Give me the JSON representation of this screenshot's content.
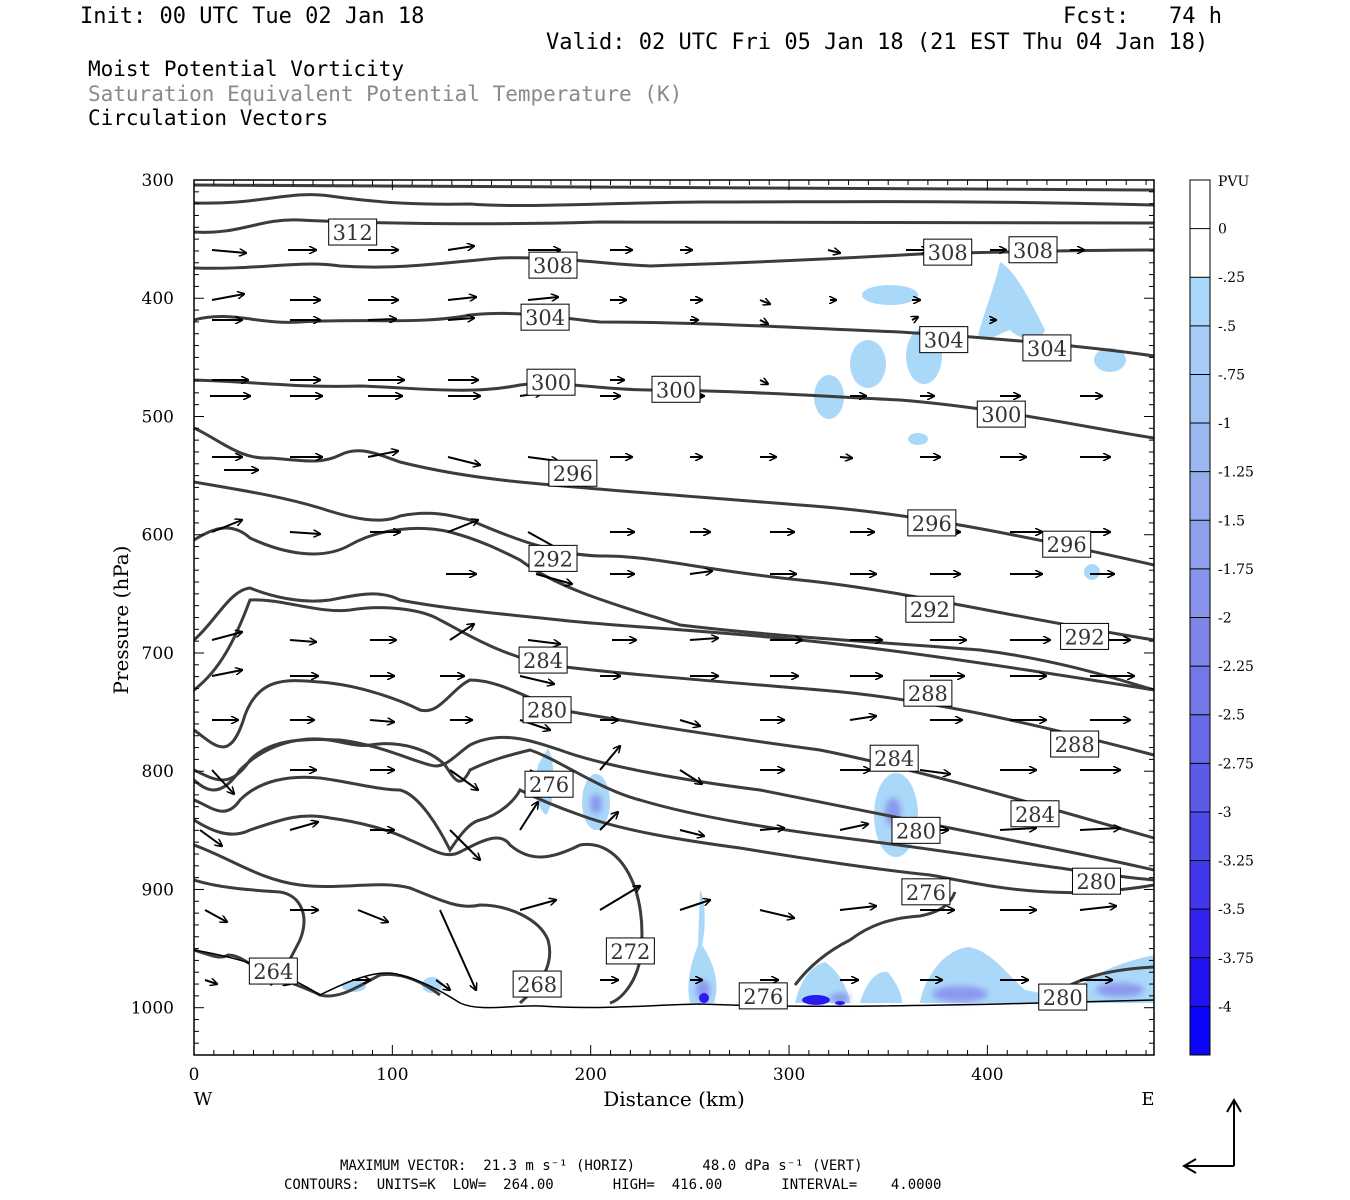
{
  "header": {
    "init": "Init: 00 UTC Tue 02 Jan 18",
    "fcst": "Fcst:   74 h",
    "valid": "Valid: 02 UTC Fri 05 Jan 18 (21 EST Thu 04 Jan 18)",
    "field1": "Moist Potential Vorticity",
    "field2": "Saturation Equivalent Potential Temperature (K)",
    "field3": "Circulation Vectors"
  },
  "footer": {
    "line1": "MAXIMUM VECTOR:  21.3 m s⁻¹ (HORIZ)        48.0 dPa s⁻¹ (VERT)",
    "line2": "CONTOURS:  UNITS=K  LOW=  264.00       HIGH=  416.00       INTERVAL=    4.0000"
  },
  "colors": {
    "contour": "#3c3c3c",
    "frame": "#000000",
    "label_grey": "#8a8a8a"
  },
  "chart_data": {
    "type": "contour",
    "xlabel": "Distance (km)",
    "ylabel": "Pressure (hPa)",
    "xlim": [
      0,
      484
    ],
    "ylim": [
      1040,
      300
    ],
    "xticks": [
      0,
      100,
      200,
      300,
      400
    ],
    "yticks": [
      300,
      400,
      500,
      600,
      700,
      800,
      900,
      1000
    ],
    "west_label": "W",
    "east_label": "E",
    "contour_units": "K",
    "contour_low": 264,
    "contour_high": 416,
    "contour_interval": 4,
    "contour_labels": [
      {
        "text": "312",
        "x": 80,
        "p": 344
      },
      {
        "text": "308",
        "x": 181,
        "p": 372
      },
      {
        "text": "308",
        "x": 380,
        "p": 361
      },
      {
        "text": "308",
        "x": 423,
        "p": 359
      },
      {
        "text": "304",
        "x": 177,
        "p": 416
      },
      {
        "text": "304",
        "x": 378,
        "p": 435
      },
      {
        "text": "304",
        "x": 430,
        "p": 442
      },
      {
        "text": "300",
        "x": 180,
        "p": 471
      },
      {
        "text": "300",
        "x": 243,
        "p": 477
      },
      {
        "text": "300",
        "x": 407,
        "p": 498
      },
      {
        "text": "296",
        "x": 191,
        "p": 548
      },
      {
        "text": "296",
        "x": 372,
        "p": 590
      },
      {
        "text": "296",
        "x": 440,
        "p": 608
      },
      {
        "text": "292",
        "x": 181,
        "p": 620
      },
      {
        "text": "292",
        "x": 371,
        "p": 663
      },
      {
        "text": "292",
        "x": 449,
        "p": 686
      },
      {
        "text": "288",
        "x": 370,
        "p": 734
      },
      {
        "text": "288",
        "x": 444,
        "p": 777
      },
      {
        "text": "284",
        "x": 176,
        "p": 706
      },
      {
        "text": "284",
        "x": 353,
        "p": 789
      },
      {
        "text": "284",
        "x": 424,
        "p": 836
      },
      {
        "text": "280",
        "x": 178,
        "p": 748
      },
      {
        "text": "280",
        "x": 364,
        "p": 850
      },
      {
        "text": "280",
        "x": 455,
        "p": 893
      },
      {
        "text": "276",
        "x": 179,
        "p": 811
      },
      {
        "text": "276",
        "x": 369,
        "p": 902
      },
      {
        "text": "276",
        "x": 287,
        "p": 990
      },
      {
        "text": "280",
        "x": 438,
        "p": 991
      },
      {
        "text": "272",
        "x": 220,
        "p": 952
      },
      {
        "text": "268",
        "x": 173,
        "p": 980
      },
      {
        "text": "264",
        "x": 40,
        "p": 969
      }
    ],
    "colorbar": {
      "label": "PVU",
      "ticks": [
        "0",
        "-.25",
        "-.5",
        "-.75",
        "-1",
        "-1.25",
        "-1.5",
        "-1.75",
        "-2",
        "-2.25",
        "-2.5",
        "-2.75",
        "-3",
        "-3.25",
        "-3.5",
        "-3.75",
        "-4"
      ],
      "colors": [
        "#ffffff",
        "#ffffff",
        "#aad8f8",
        "#a6cdf6",
        "#a2c4f4",
        "#9cb8f2",
        "#96acef",
        "#90a0ec",
        "#8894ea",
        "#7f85e7",
        "#7577e6",
        "#6a69e7",
        "#5e5ae8",
        "#5049ea",
        "#4236ec",
        "#3322ee",
        "#2214f2",
        "#0c06f8"
      ]
    },
    "max_vector_horiz": "21.3 m s⁻¹",
    "max_vector_vert": "48.0 dPa s⁻¹"
  }
}
